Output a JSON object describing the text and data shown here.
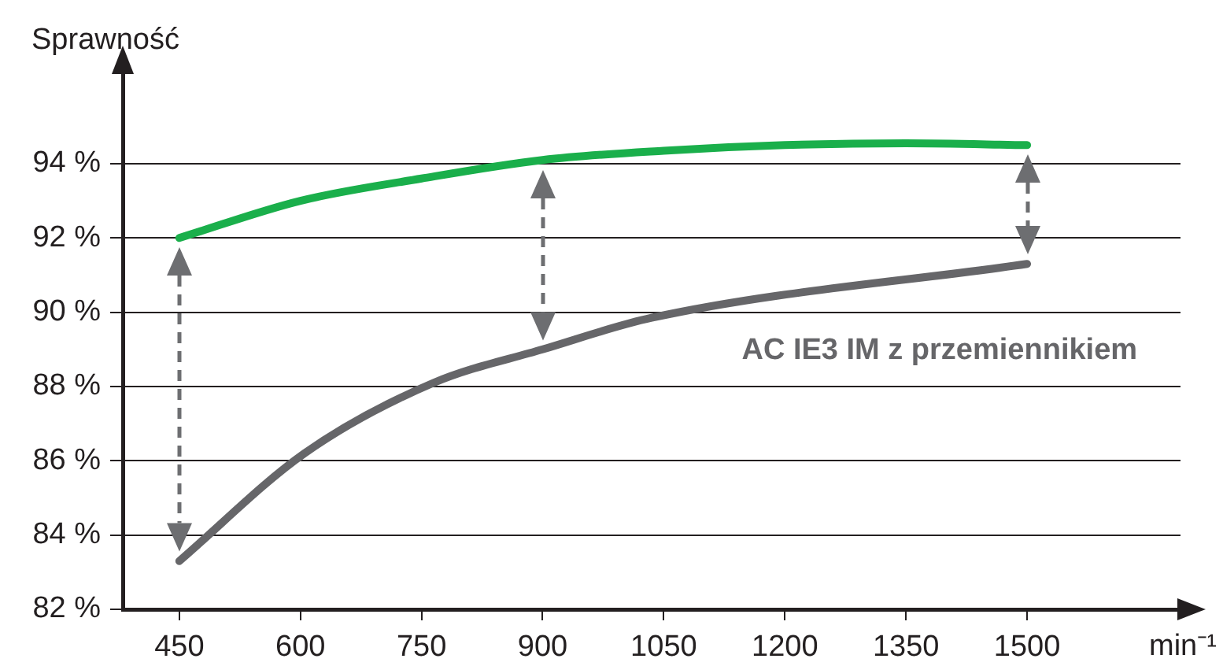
{
  "chart_data": {
    "type": "line",
    "ylabel": "Sprawność",
    "xlabel": "min⁻¹",
    "xlim": [
      380,
      1690
    ],
    "xticks": [
      450,
      600,
      750,
      900,
      1050,
      1200,
      1350,
      1500
    ],
    "ylim": [
      82,
      96.5
    ],
    "yticks": [
      {
        "value": 82,
        "label": "82 %"
      },
      {
        "value": 84,
        "label": "84 %"
      },
      {
        "value": 86,
        "label": "86 %"
      },
      {
        "value": 88,
        "label": "88 %"
      },
      {
        "value": 90,
        "label": "90 %"
      },
      {
        "value": 92,
        "label": "92 %"
      },
      {
        "value": 94,
        "label": "94 %"
      }
    ],
    "grid": "y",
    "marker": "none",
    "line_style": "solid",
    "series": [
      {
        "color": "#1aaf4b",
        "x": [
          450,
          600,
          750,
          900,
          1050,
          1200,
          1350,
          1500
        ],
        "values": [
          92.0,
          93.0,
          93.6,
          94.1,
          94.35,
          94.5,
          94.55,
          94.5
        ]
      },
      {
        "name": "AC IE3 IM z przemiennikiem",
        "color": "#666669",
        "x": [
          450,
          605,
          765,
          900,
          1035,
          1500
        ],
        "values": [
          83.3,
          86.2,
          88.1,
          89.0,
          89.85,
          91.3
        ]
      }
    ]
  }
}
